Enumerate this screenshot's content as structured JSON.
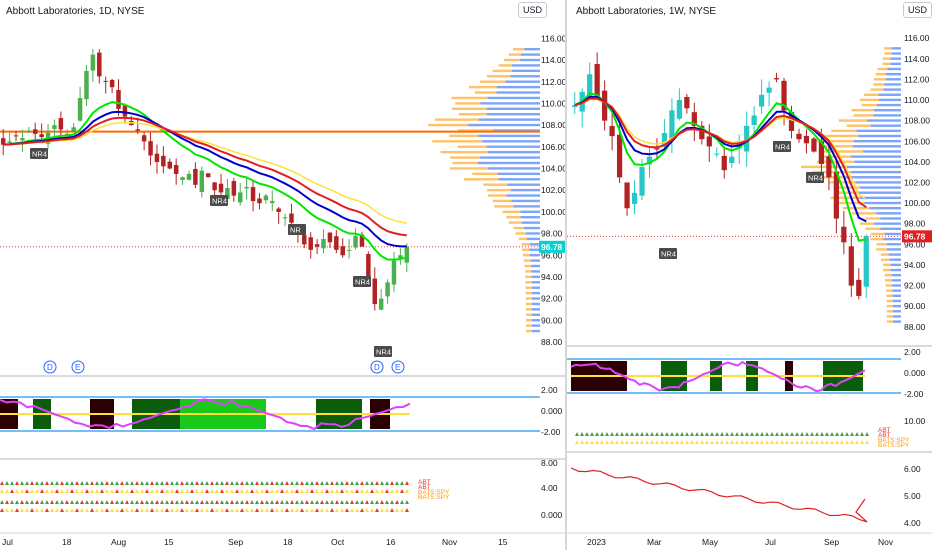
{
  "left_chart": {
    "title": "Abbott Laboratories, 1D, NYSE",
    "currency_button": "USD",
    "price_axis_labels": [
      "116.00",
      "114.00",
      "112.00",
      "110.00",
      "108.00",
      "106.00",
      "104.00",
      "102.00",
      "100.00",
      "98.00",
      "96.00",
      "94.00",
      "92.00",
      "90.00",
      "88.00"
    ],
    "current_price_label": "96.78",
    "osc_axis_labels": [
      "2.00",
      "0.000",
      "-2.00"
    ],
    "breadth_axis_labels": [
      "8.00",
      "4.00",
      "0.000"
    ],
    "x_axis_labels": [
      "Jul",
      "18",
      "Aug",
      "15",
      "Sep",
      "18",
      "Oct",
      "16",
      "Nov",
      "15"
    ],
    "pattern_labels": [
      "NR4",
      "NR4",
      "NR",
      "NR4",
      "NR4"
    ],
    "event_markers": [
      "D",
      "E",
      "D",
      "E"
    ],
    "legend_labels": [
      "ABT",
      "ABT",
      "BATS:SPY",
      "BATS:SPY"
    ],
    "colors": {
      "green": "#00e600",
      "blue": "#0000cc",
      "red": "#e02020",
      "yellow": "#ffe135",
      "orange_line": "#ff6a00",
      "bull": "#4caf50",
      "bear": "#b22222",
      "profile_blue": "#5b8ff9",
      "profile_orange": "#ffb74d"
    }
  },
  "right_chart": {
    "title": "Abbott Laboratories, 1W, NYSE",
    "currency_button": "USD",
    "price_axis_labels": [
      "116.00",
      "114.00",
      "112.00",
      "110.00",
      "108.00",
      "106.00",
      "104.00",
      "102.00",
      "100.00",
      "98.00",
      "96.00",
      "94.00",
      "92.00",
      "90.00",
      "88.00"
    ],
    "current_price_label": "96.78",
    "osc_axis_labels": [
      "2.00",
      "0.000",
      "-2.00"
    ],
    "breadth_axis_labels": [
      "10.00"
    ],
    "ratio_axis_labels": [
      "6.00",
      "5.00",
      "4.00"
    ],
    "x_axis_labels": [
      "2023",
      "Mar",
      "May",
      "Jul",
      "Sep",
      "Nov"
    ],
    "pattern_labels": [
      "NR4",
      "NR4",
      "NR4"
    ],
    "legend_labels": [
      "ABT",
      "ABT",
      "BATS:SPY",
      "BATS:SPY"
    ],
    "colors": {
      "green": "#00e600",
      "blue": "#0000cc",
      "red": "#e02020",
      "yellow": "#ffe135",
      "bull": "#28c7c7",
      "bear": "#b22222"
    }
  },
  "chart_data": [
    {
      "type": "candlestick",
      "title": "Abbott Laboratories, 1D, NYSE",
      "x": [
        "Jul",
        "18",
        "Aug",
        "15",
        "Sep",
        "18",
        "Oct",
        "16",
        "Nov",
        "15"
      ],
      "ylim": [
        88,
        116.5
      ],
      "close_trend": [
        106.2,
        106.5,
        107.0,
        106.8,
        107.5,
        107.2,
        106.9,
        107.3,
        108.0,
        107.6,
        107.2,
        107.8,
        110.5,
        113.0,
        114.5,
        112.5,
        112.0,
        111.5,
        109.5,
        108.8,
        108.0,
        107.5,
        106.5,
        105.2,
        104.6,
        104.2,
        104.0,
        103.5,
        103.2,
        103.5,
        102.5,
        103.8,
        103.2,
        102.0,
        101.8,
        102.2,
        101.5,
        101.8,
        102.3,
        101.0,
        100.8,
        101.5,
        101.0,
        100.0,
        99.5,
        99.0,
        98.2,
        97.0,
        96.5,
        96.8,
        97.5,
        97.2,
        96.5,
        96.0,
        96.5,
        97.8,
        96.8,
        94.0,
        91.5,
        92.0,
        93.5,
        95.5,
        96.0,
        96.78
      ],
      "current_price": 96.78,
      "horizontal_level": 107.4
    },
    {
      "type": "candlestick",
      "title": "Abbott Laboratories, 1W, NYSE",
      "x": [
        "2023",
        "Mar",
        "May",
        "Jul",
        "Sep",
        "Nov"
      ],
      "ylim": [
        87.5,
        116.5
      ],
      "close_trend": [
        109.5,
        110.8,
        112.5,
        110.2,
        108.0,
        106.5,
        102.5,
        99.5,
        101.0,
        103.5,
        104.5,
        105.2,
        106.8,
        109.0,
        110.0,
        109.2,
        107.5,
        106.2,
        105.5,
        104.8,
        103.2,
        104.5,
        106.0,
        107.5,
        108.5,
        110.5,
        111.2,
        112.0,
        109.0,
        107.0,
        106.2,
        105.8,
        105.0,
        103.8,
        102.5,
        98.5,
        96.2,
        92.0,
        91.0,
        96.78
      ],
      "current_price": 96.78
    }
  ]
}
